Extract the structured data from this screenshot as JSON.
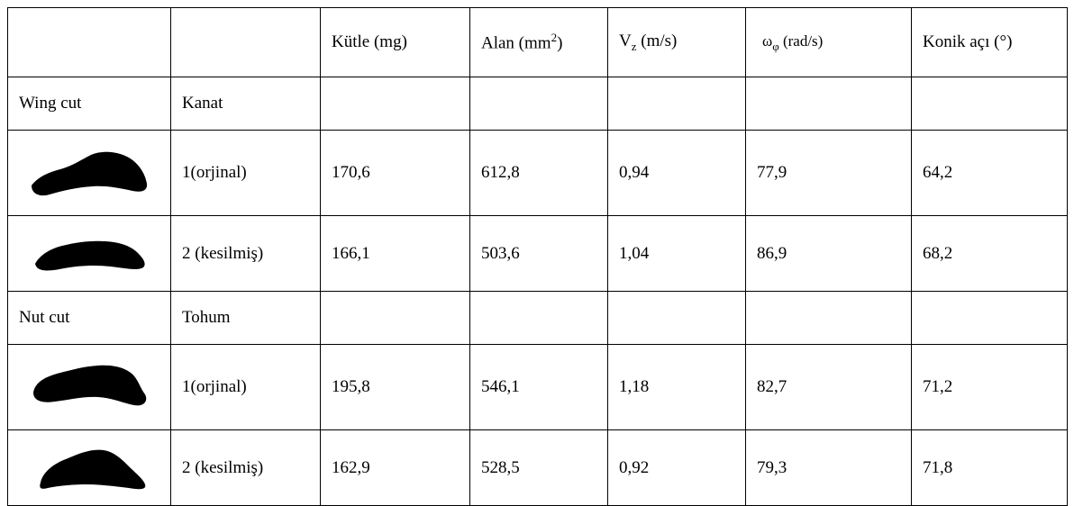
{
  "table": {
    "header": {
      "mass_label": "Kütle (mg)",
      "area_label": "Alan (mm",
      "area_sup": "2",
      "area_close": ")",
      "vz_main": "V",
      "vz_sub": "z",
      "vz_unit": " (m/s)",
      "omega_main": "ω",
      "omega_sub": "φ",
      "omega_unit": " (rad/s)",
      "cone_label": "Konik açı (°)"
    },
    "group1": {
      "label": "Wing cut",
      "sublabel": "Kanat"
    },
    "group2": {
      "label": "Nut cut",
      "sublabel": "Tohum"
    },
    "rows": [
      {
        "variant": "1(orjinal)",
        "mass": "170,6",
        "area": "612,8",
        "vz": "0,94",
        "omega": "77,9",
        "cone": "64,2"
      },
      {
        "variant": "2 (kesilmiş)",
        "mass": "166,1",
        "area": "503,6",
        "vz": "1,04",
        "omega": "86,9",
        "cone": "68,2"
      },
      {
        "variant": "1(orjinal)",
        "mass": "195,8",
        "area": "546,1",
        "vz": "1,18",
        "omega": "82,7",
        "cone": "71,2"
      },
      {
        "variant": "2 (kesilmiş)",
        "mass": "162,9",
        "area": "528,5",
        "vz": "0,92",
        "omega": "79,3",
        "cone": "71,8"
      }
    ],
    "shape_color": "#000000"
  }
}
